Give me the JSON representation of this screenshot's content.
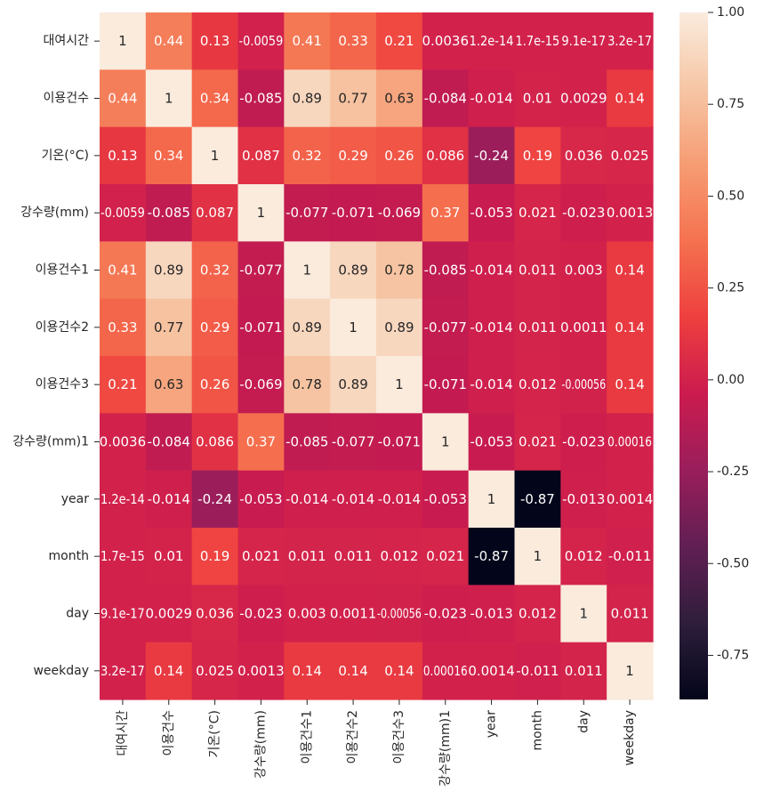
{
  "chart_data": {
    "type": "heatmap",
    "title": "",
    "xlabel": "",
    "ylabel": "",
    "x": [
      "대여시간",
      "이용건수",
      "기온(°C)",
      "강수량(mm)",
      "이용건수1",
      "이용건수2",
      "이용건수3",
      "강수량(mm)1",
      "year",
      "month",
      "day",
      "weekday"
    ],
    "y": [
      "대여시간",
      "이용건수",
      "기온(°C)",
      "강수량(mm)",
      "이용건수1",
      "이용건수2",
      "이용건수3",
      "강수량(mm)1",
      "year",
      "month",
      "day",
      "weekday"
    ],
    "values": [
      [
        1,
        0.44,
        0.13,
        -0.0059,
        0.41,
        0.33,
        0.21,
        0.0036,
        1.2e-14,
        1.7e-15,
        9.1e-17,
        3.2e-17
      ],
      [
        0.44,
        1,
        0.34,
        -0.085,
        0.89,
        0.77,
        0.63,
        -0.084,
        -0.014,
        0.01,
        0.0029,
        0.14
      ],
      [
        0.13,
        0.34,
        1,
        0.087,
        0.32,
        0.29,
        0.26,
        0.086,
        -0.24,
        0.19,
        0.036,
        0.025
      ],
      [
        -0.0059,
        -0.085,
        0.087,
        1,
        -0.077,
        -0.071,
        -0.069,
        0.37,
        -0.053,
        0.021,
        -0.023,
        0.0013
      ],
      [
        0.41,
        0.89,
        0.32,
        -0.077,
        1,
        0.89,
        0.78,
        -0.085,
        -0.014,
        0.011,
        0.003,
        0.14
      ],
      [
        0.33,
        0.77,
        0.29,
        -0.071,
        0.89,
        1,
        0.89,
        -0.077,
        -0.014,
        0.011,
        0.0011,
        0.14
      ],
      [
        0.21,
        0.63,
        0.26,
        -0.069,
        0.78,
        0.89,
        1,
        -0.071,
        -0.014,
        0.012,
        -0.00056,
        0.14
      ],
      [
        0.0036,
        -0.084,
        0.086,
        0.37,
        -0.085,
        -0.077,
        -0.071,
        1,
        -0.053,
        0.021,
        -0.023,
        0.00016
      ],
      [
        1.2e-14,
        -0.014,
        -0.24,
        -0.053,
        -0.014,
        -0.014,
        -0.014,
        -0.053,
        1,
        -0.87,
        -0.013,
        0.0014
      ],
      [
        1.7e-15,
        0.01,
        0.19,
        0.021,
        0.011,
        0.011,
        0.012,
        0.021,
        -0.87,
        1,
        0.012,
        -0.011
      ],
      [
        9.1e-17,
        0.0029,
        0.036,
        -0.023,
        0.003,
        0.0011,
        -0.00056,
        -0.023,
        -0.013,
        0.012,
        1,
        0.011
      ],
      [
        3.2e-17,
        0.14,
        0.025,
        0.0013,
        0.14,
        0.14,
        0.14,
        0.00016,
        0.0014,
        -0.011,
        0.011,
        1
      ]
    ],
    "annotations": [
      [
        "1",
        "0.44",
        "0.13",
        "-0.0059",
        "0.41",
        "0.33",
        "0.21",
        "0.0036",
        "1.2e-14",
        "1.7e-15",
        "9.1e-17",
        "3.2e-17"
      ],
      [
        "0.44",
        "1",
        "0.34",
        "-0.085",
        "0.89",
        "0.77",
        "0.63",
        "-0.084",
        "-0.014",
        "0.01",
        "0.0029",
        "0.14"
      ],
      [
        "0.13",
        "0.34",
        "1",
        "0.087",
        "0.32",
        "0.29",
        "0.26",
        "0.086",
        "-0.24",
        "0.19",
        "0.036",
        "0.025"
      ],
      [
        "-0.0059",
        "-0.085",
        "0.087",
        "1",
        "-0.077",
        "-0.071",
        "-0.069",
        "0.37",
        "-0.053",
        "0.021",
        "-0.023",
        "0.0013"
      ],
      [
        "0.41",
        "0.89",
        "0.32",
        "-0.077",
        "1",
        "0.89",
        "0.78",
        "-0.085",
        "-0.014",
        "0.011",
        "0.003",
        "0.14"
      ],
      [
        "0.33",
        "0.77",
        "0.29",
        "-0.071",
        "0.89",
        "1",
        "0.89",
        "-0.077",
        "-0.014",
        "0.011",
        "0.0011",
        "0.14"
      ],
      [
        "0.21",
        "0.63",
        "0.26",
        "-0.069",
        "0.78",
        "0.89",
        "1",
        "-0.071",
        "-0.014",
        "0.012",
        "-0.00056",
        "0.14"
      ],
      [
        "0.0036",
        "-0.084",
        "0.086",
        "0.37",
        "-0.085",
        "-0.077",
        "-0.071",
        "1",
        "-0.053",
        "0.021",
        "-0.023",
        "0.00016"
      ],
      [
        "1.2e-14",
        "-0.014",
        "-0.24",
        "-0.053",
        "-0.014",
        "-0.014",
        "-0.014",
        "-0.053",
        "1",
        "-0.87",
        "-0.013",
        "0.0014"
      ],
      [
        "1.7e-15",
        "0.01",
        "0.19",
        "0.021",
        "0.011",
        "0.011",
        "0.012",
        "0.021",
        "-0.87",
        "1",
        "0.012",
        "-0.011"
      ],
      [
        "9.1e-17",
        "0.0029",
        "0.036",
        "-0.023",
        "0.003",
        "0.0011",
        "-0.00056",
        "-0.023",
        "-0.013",
        "0.012",
        "1",
        "0.011"
      ],
      [
        "3.2e-17",
        "0.14",
        "0.025",
        "0.0013",
        "0.14",
        "0.14",
        "0.14",
        "0.00016",
        "0.0014",
        "-0.011",
        "0.011",
        "1"
      ]
    ],
    "colorbar": {
      "vmin": -0.87,
      "vmax": 1,
      "ticks": [
        1,
        0.75,
        0.5,
        0.25,
        0,
        -0.25,
        -0.5,
        -0.75
      ],
      "tick_labels": [
        "1.00",
        "0.75",
        "0.50",
        "0.25",
        "0.00",
        "-0.25",
        "-0.50",
        "-0.75"
      ],
      "colormap": "rocket",
      "colormap_stops": [
        "#03051a",
        "#2e1e3b",
        "#611f53",
        "#991e5b",
        "#cb1b4f",
        "#ee3f3f",
        "#f5714f",
        "#f69c73",
        "#f6c6a5",
        "#faebdd"
      ]
    },
    "grid": false,
    "legend": "right"
  }
}
